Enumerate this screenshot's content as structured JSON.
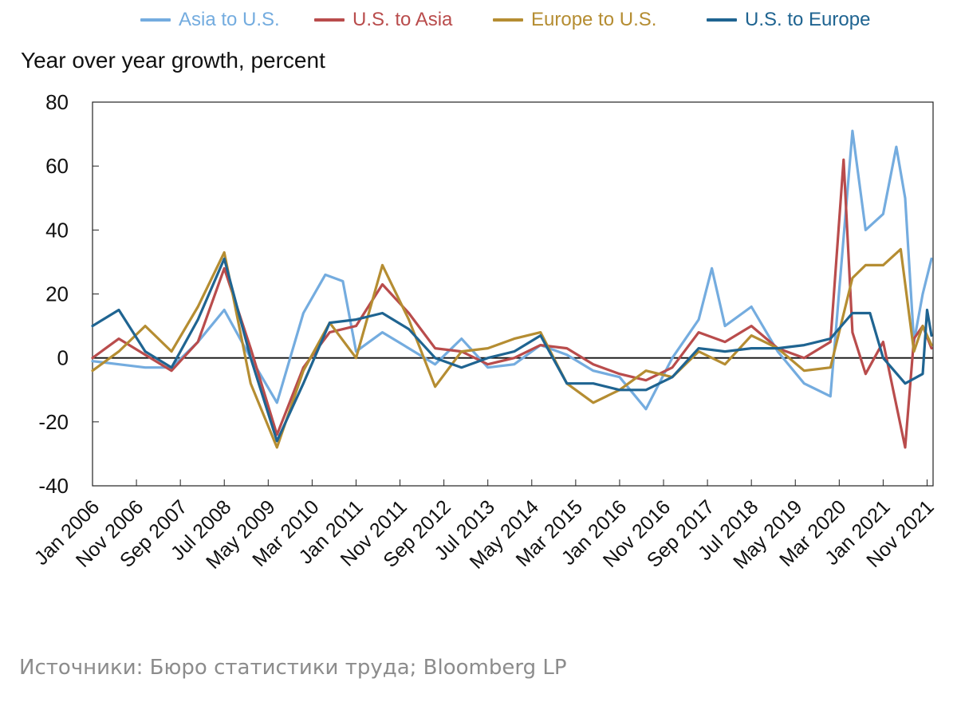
{
  "chart_data": {
    "type": "line",
    "ylabel": "Year over year growth, percent",
    "ylim": [
      -40,
      80
    ],
    "yticks": [
      80,
      60,
      40,
      20,
      0,
      -20,
      -40
    ],
    "x_tick_labels": [
      "Jan 2006",
      "Nov 2006",
      "Sep 2007",
      "Jul 2008",
      "May 2009",
      "Mar 2010",
      "Jan 2011",
      "Nov 2011",
      "Sep 2012",
      "Jul 2013",
      "May 2014",
      "Mar 2015",
      "Jan 2016",
      "Nov 2016",
      "Sep 2017",
      "Jul 2018",
      "May 2019",
      "Mar 2020",
      "Jan 2021",
      "Nov 2021"
    ],
    "x_range": [
      "Jan 2006",
      "Dec 2021"
    ],
    "zero_line": true,
    "grid": false,
    "legend_position": "top",
    "series": [
      {
        "name": "Asia to U.S.",
        "color": "#74acdf",
        "points": [
          [
            "Jan 2006",
            -1
          ],
          [
            "Jul 2006",
            -2
          ],
          [
            "Jan 2007",
            -3
          ],
          [
            "Jul 2007",
            -3
          ],
          [
            "Jan 2008",
            5
          ],
          [
            "Jul 2008",
            15
          ],
          [
            "Jan 2009",
            0
          ],
          [
            "Jul 2009",
            -14
          ],
          [
            "Jan 2010",
            14
          ],
          [
            "Jun 2010",
            26
          ],
          [
            "Oct 2010",
            24
          ],
          [
            "Jan 2011",
            2
          ],
          [
            "Jul 2011",
            8
          ],
          [
            "Jan 2012",
            3
          ],
          [
            "Jul 2012",
            -2
          ],
          [
            "Jan 2013",
            6
          ],
          [
            "Jul 2013",
            -3
          ],
          [
            "Jan 2014",
            -2
          ],
          [
            "Jul 2014",
            4
          ],
          [
            "Jan 2015",
            1
          ],
          [
            "Jul 2015",
            -4
          ],
          [
            "Jan 2016",
            -6
          ],
          [
            "Jul 2016",
            -16
          ],
          [
            "Jan 2017",
            0
          ],
          [
            "Jul 2017",
            12
          ],
          [
            "Oct 2017",
            28
          ],
          [
            "Jan 2018",
            10
          ],
          [
            "Jul 2018",
            16
          ],
          [
            "Jan 2019",
            2
          ],
          [
            "Jul 2019",
            -8
          ],
          [
            "Jan 2020",
            -12
          ],
          [
            "Jun 2020",
            71
          ],
          [
            "Sep 2020",
            40
          ],
          [
            "Jan 2021",
            45
          ],
          [
            "Apr 2021",
            66
          ],
          [
            "Jun 2021",
            50
          ],
          [
            "Aug 2021",
            5
          ],
          [
            "Oct 2021",
            20
          ],
          [
            "Dec 2021",
            31
          ]
        ]
      },
      {
        "name": "U.S. to Asia",
        "color": "#b94c4c",
        "points": [
          [
            "Jan 2006",
            0
          ],
          [
            "Jul 2006",
            6
          ],
          [
            "Jan 2007",
            1
          ],
          [
            "Jul 2007",
            -4
          ],
          [
            "Jan 2008",
            5
          ],
          [
            "Jul 2008",
            28
          ],
          [
            "Jan 2009",
            3
          ],
          [
            "Jul 2009",
            -24
          ],
          [
            "Jan 2010",
            -3
          ],
          [
            "Jul 2010",
            8
          ],
          [
            "Jan 2011",
            10
          ],
          [
            "Jul 2011",
            23
          ],
          [
            "Jan 2012",
            14
          ],
          [
            "Jul 2012",
            3
          ],
          [
            "Jan 2013",
            2
          ],
          [
            "Jul 2013",
            -2
          ],
          [
            "Jan 2014",
            0
          ],
          [
            "Jul 2014",
            4
          ],
          [
            "Jan 2015",
            3
          ],
          [
            "Jul 2015",
            -2
          ],
          [
            "Jan 2016",
            -5
          ],
          [
            "Jul 2016",
            -7
          ],
          [
            "Jan 2017",
            -3
          ],
          [
            "Jul 2017",
            8
          ],
          [
            "Jan 2018",
            5
          ],
          [
            "Jul 2018",
            10
          ],
          [
            "Jan 2019",
            3
          ],
          [
            "Jul 2019",
            0
          ],
          [
            "Jan 2020",
            5
          ],
          [
            "Apr 2020",
            62
          ],
          [
            "Jun 2020",
            8
          ],
          [
            "Sep 2020",
            -5
          ],
          [
            "Jan 2021",
            5
          ],
          [
            "Jun 2021",
            -28
          ],
          [
            "Aug 2021",
            6
          ],
          [
            "Oct 2021",
            10
          ],
          [
            "Dec 2021",
            3
          ]
        ]
      },
      {
        "name": "Europe to U.S.",
        "color": "#b58d32",
        "points": [
          [
            "Jan 2006",
            -4
          ],
          [
            "Jul 2006",
            2
          ],
          [
            "Jan 2007",
            10
          ],
          [
            "Jul 2007",
            2
          ],
          [
            "Jan 2008",
            16
          ],
          [
            "Jul 2008",
            33
          ],
          [
            "Jan 2009",
            -8
          ],
          [
            "Jul 2009",
            -28
          ],
          [
            "Jan 2010",
            -4
          ],
          [
            "Jul 2010",
            11
          ],
          [
            "Jan 2011",
            0
          ],
          [
            "Jul 2011",
            29
          ],
          [
            "Jan 2012",
            12
          ],
          [
            "Jul 2012",
            -9
          ],
          [
            "Jan 2013",
            2
          ],
          [
            "Jul 2013",
            3
          ],
          [
            "Jan 2014",
            6
          ],
          [
            "Jul 2014",
            8
          ],
          [
            "Jan 2015",
            -8
          ],
          [
            "Jul 2015",
            -14
          ],
          [
            "Jan 2016",
            -10
          ],
          [
            "Jul 2016",
            -4
          ],
          [
            "Jan 2017",
            -6
          ],
          [
            "Jul 2017",
            2
          ],
          [
            "Jan 2018",
            -2
          ],
          [
            "Jul 2018",
            7
          ],
          [
            "Jan 2019",
            3
          ],
          [
            "Jul 2019",
            -4
          ],
          [
            "Jan 2020",
            -3
          ],
          [
            "Jun 2020",
            25
          ],
          [
            "Sep 2020",
            29
          ],
          [
            "Jan 2021",
            29
          ],
          [
            "May 2021",
            34
          ],
          [
            "Aug 2021",
            2
          ],
          [
            "Oct 2021",
            10
          ],
          [
            "Dec 2021",
            4
          ]
        ]
      },
      {
        "name": "U.S. to Europe",
        "color": "#1f6491",
        "points": [
          [
            "Jan 2006",
            10
          ],
          [
            "Jul 2006",
            15
          ],
          [
            "Jan 2007",
            2
          ],
          [
            "Jul 2007",
            -3
          ],
          [
            "Jan 2008",
            12
          ],
          [
            "Jul 2008",
            31
          ],
          [
            "Jan 2009",
            0
          ],
          [
            "Jul 2009",
            -26
          ],
          [
            "Jan 2010",
            -8
          ],
          [
            "Jul 2010",
            11
          ],
          [
            "Jan 2011",
            12
          ],
          [
            "Jul 2011",
            14
          ],
          [
            "Jan 2012",
            9
          ],
          [
            "Jul 2012",
            0
          ],
          [
            "Jan 2013",
            -3
          ],
          [
            "Jul 2013",
            0
          ],
          [
            "Jan 2014",
            2
          ],
          [
            "Jul 2014",
            7
          ],
          [
            "Jan 2015",
            -8
          ],
          [
            "Jul 2015",
            -8
          ],
          [
            "Jan 2016",
            -10
          ],
          [
            "Jul 2016",
            -10
          ],
          [
            "Jan 2017",
            -6
          ],
          [
            "Jul 2017",
            3
          ],
          [
            "Jan 2018",
            2
          ],
          [
            "Jul 2018",
            3
          ],
          [
            "Jan 2019",
            3
          ],
          [
            "Jul 2019",
            4
          ],
          [
            "Jan 2020",
            6
          ],
          [
            "Jun 2020",
            14
          ],
          [
            "Oct 2020",
            14
          ],
          [
            "Jan 2021",
            0
          ],
          [
            "Jun 2021",
            -8
          ],
          [
            "Oct 2021",
            -5
          ],
          [
            "Nov 2021",
            15
          ],
          [
            "Dec 2021",
            7
          ]
        ]
      }
    ]
  },
  "footer": {
    "source": "Источники: Бюро статистики труда; Bloomberg LP"
  }
}
